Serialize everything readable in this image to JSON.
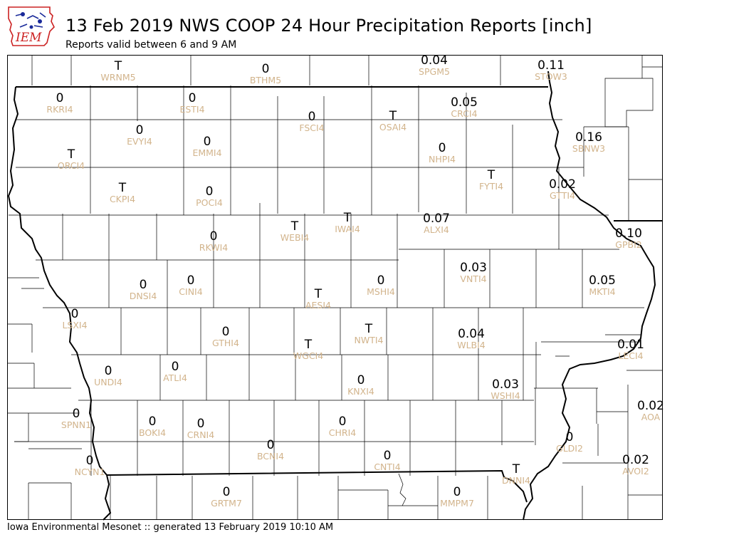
{
  "header": {
    "title": "13 Feb 2019 NWS COOP 24 Hour Precipitation Reports [inch]",
    "subtitle": "Reports valid between 6 and 9 AM",
    "logo_text": "IEM"
  },
  "footer": {
    "text": "Iowa Environmental Mesonet :: generated 13 February 2019 10:10 AM"
  },
  "colors": {
    "station_id": "#d2b48c",
    "value": "#000000",
    "logo_red": "#cc2222",
    "logo_blue": "#1a2a9a"
  },
  "stations": [
    {
      "id": "WRNM5",
      "value": "T"
    },
    {
      "id": "BTHM5",
      "value": "0"
    },
    {
      "id": "SPGM5",
      "value": "0.04"
    },
    {
      "id": "STOW3",
      "value": "0.11"
    },
    {
      "id": "RKRI4",
      "value": "0"
    },
    {
      "id": "ESTI4",
      "value": "0"
    },
    {
      "id": "FSCI4",
      "value": "0"
    },
    {
      "id": "OSAI4",
      "value": "T"
    },
    {
      "id": "CRCI4",
      "value": "0.05"
    },
    {
      "id": "EVYI4",
      "value": "0"
    },
    {
      "id": "EMMI4",
      "value": "0"
    },
    {
      "id": "ORCI4",
      "value": "T"
    },
    {
      "id": "NHPI4",
      "value": "0"
    },
    {
      "id": "SBNW3",
      "value": "0.16"
    },
    {
      "id": "CKPI4",
      "value": "T"
    },
    {
      "id": "POCI4",
      "value": "0"
    },
    {
      "id": "FYTI4",
      "value": "T"
    },
    {
      "id": "GTTI4",
      "value": "0.02"
    },
    {
      "id": "WEBI4",
      "value": "T"
    },
    {
      "id": "IWAI4",
      "value": "T"
    },
    {
      "id": "ALXI4",
      "value": "0.07"
    },
    {
      "id": "RKWI4",
      "value": "0"
    },
    {
      "id": "GPBI2",
      "value": "0.10"
    },
    {
      "id": "VNTI4",
      "value": "0.03"
    },
    {
      "id": "DNSI4",
      "value": "0"
    },
    {
      "id": "CINI4",
      "value": "0"
    },
    {
      "id": "MSHI4",
      "value": "0"
    },
    {
      "id": "MKTI4",
      "value": "0.05"
    },
    {
      "id": "AESI4",
      "value": "T"
    },
    {
      "id": "LSXI4",
      "value": "0"
    },
    {
      "id": "GTHI4",
      "value": "0"
    },
    {
      "id": "NWTI4",
      "value": "T"
    },
    {
      "id": "WLBI4",
      "value": "0.04"
    },
    {
      "id": "WGCI4",
      "value": "T"
    },
    {
      "id": "LECI4",
      "value": "0.01"
    },
    {
      "id": "UNDI4",
      "value": "0"
    },
    {
      "id": "ATLI4",
      "value": "0"
    },
    {
      "id": "KNXI4",
      "value": "0"
    },
    {
      "id": "WSHI4",
      "value": "0.03"
    },
    {
      "id": "AOA",
      "value": "0.02"
    },
    {
      "id": "SPNN1",
      "value": "0"
    },
    {
      "id": "BOKI4",
      "value": "0"
    },
    {
      "id": "CRNI4",
      "value": "0"
    },
    {
      "id": "CHRI4",
      "value": "0"
    },
    {
      "id": "GLDI2",
      "value": "0"
    },
    {
      "id": "BCNI4",
      "value": "0"
    },
    {
      "id": "CNTI4",
      "value": "0"
    },
    {
      "id": "AVOI2",
      "value": "0.02"
    },
    {
      "id": "NCYN1",
      "value": "0"
    },
    {
      "id": "DNNI4",
      "value": "T"
    },
    {
      "id": "GRTM7",
      "value": "0"
    },
    {
      "id": "MMPM7",
      "value": "0"
    }
  ]
}
